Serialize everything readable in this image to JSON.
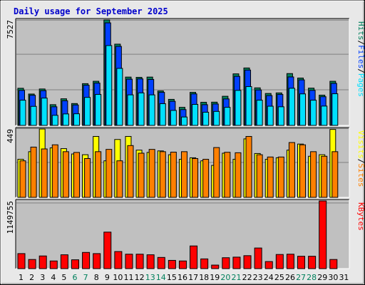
{
  "title": "Daily usage for September 2025",
  "colors": {
    "hits": "#00805c",
    "files": "#0040ff",
    "pages": "#00e0ff",
    "visits": "#ffff00",
    "sites": "#ff8000",
    "kbytes": "#ff0000",
    "weekend_label": "#00805c",
    "weekday_label": "#000000",
    "panel_bg": "#c0c0c0",
    "grid": "#808080"
  },
  "chart_data": [
    {
      "type": "bar",
      "panel": "hits-files-pages",
      "ymax_label": "7527",
      "ylim": [
        0,
        7527
      ],
      "legend": [
        "Pages",
        "/",
        "Files",
        "/",
        "Hits"
      ],
      "categories": [
        "1",
        "2",
        "3",
        "4",
        "5",
        "6",
        "7",
        "8",
        "9",
        "10",
        "11",
        "12",
        "13",
        "14",
        "15",
        "16",
        "17",
        "18",
        "19",
        "20",
        "21",
        "22",
        "23",
        "24",
        "25",
        "26",
        "27",
        "28",
        "29",
        "30",
        "31"
      ],
      "series": [
        {
          "name": "Hits",
          "values": [
            2650,
            2240,
            2600,
            1480,
            1900,
            1560,
            2980,
            3150,
            7527,
            5800,
            3450,
            3430,
            3450,
            2460,
            1860,
            1290,
            2360,
            1650,
            1660,
            2080,
            3680,
            4100,
            2680,
            2280,
            2320,
            3700,
            3380,
            2660,
            2160,
            3150,
            null
          ]
        },
        {
          "name": "Files",
          "values": [
            2500,
            2150,
            2480,
            1330,
            1760,
            1460,
            2870,
            3020,
            7320,
            5640,
            3300,
            3320,
            3280,
            2360,
            1720,
            1130,
            2250,
            1480,
            1530,
            1890,
            3500,
            3950,
            2530,
            2130,
            2210,
            3460,
            3250,
            2500,
            2050,
            3000,
            null
          ]
        },
        {
          "name": "Pages",
          "values": [
            1800,
            1360,
            1950,
            720,
            820,
            830,
            2000,
            2210,
            5700,
            4070,
            2180,
            2320,
            2180,
            1550,
            1070,
            600,
            1500,
            940,
            1000,
            1290,
            2500,
            2770,
            1800,
            1370,
            1330,
            2650,
            2250,
            1800,
            1380,
            2260,
            null
          ]
        }
      ]
    },
    {
      "type": "bar",
      "panel": "visits-sites",
      "ymax_label": "449",
      "ylim": [
        0,
        449
      ],
      "legend": [
        "Sites",
        "/",
        "Visits"
      ],
      "categories": [
        "1",
        "2",
        "3",
        "4",
        "5",
        "6",
        "7",
        "8",
        "9",
        "10",
        "11",
        "12",
        "13",
        "14",
        "15",
        "16",
        "17",
        "18",
        "19",
        "20",
        "21",
        "22",
        "23",
        "24",
        "25",
        "26",
        "27",
        "28",
        "29",
        "30",
        "31"
      ],
      "series": [
        {
          "name": "Visits",
          "values": [
            250,
            300,
            449,
            325,
            320,
            285,
            280,
            400,
            240,
            380,
            400,
            310,
            295,
            305,
            280,
            250,
            260,
            240,
            210,
            290,
            250,
            384,
            288,
            250,
            260,
            310,
            350,
            270,
            280,
            446,
            null
          ]
        },
        {
          "name": "Sites",
          "values": [
            240,
            330,
            318,
            345,
            300,
            295,
            255,
            300,
            315,
            240,
            340,
            290,
            315,
            300,
            297,
            300,
            255,
            250,
            327,
            296,
            293,
            400,
            280,
            265,
            265,
            360,
            345,
            300,
            270,
            300,
            null
          ]
        }
      ]
    },
    {
      "type": "bar",
      "panel": "kbytes",
      "ymax_label": "1149755",
      "ylim": [
        0,
        1149755
      ],
      "legend": [
        "KBytes"
      ],
      "categories": [
        "1",
        "2",
        "3",
        "4",
        "5",
        "6",
        "7",
        "8",
        "9",
        "10",
        "11",
        "12",
        "13",
        "14",
        "15",
        "16",
        "17",
        "18",
        "19",
        "20",
        "21",
        "22",
        "23",
        "24",
        "25",
        "26",
        "27",
        "28",
        "29",
        "30",
        "31"
      ],
      "series": [
        {
          "name": "KBytes",
          "values": [
            255000,
            155000,
            215000,
            130000,
            235000,
            150000,
            275000,
            255000,
            620000,
            290000,
            245000,
            245000,
            235000,
            190000,
            140000,
            130000,
            385000,
            165000,
            60000,
            185000,
            195000,
            220000,
            350000,
            120000,
            240000,
            245000,
            210000,
            210000,
            1149755,
            155000,
            null
          ]
        }
      ]
    }
  ],
  "weekend_days": [
    6,
    7,
    13,
    14,
    20,
    21,
    27,
    28
  ]
}
